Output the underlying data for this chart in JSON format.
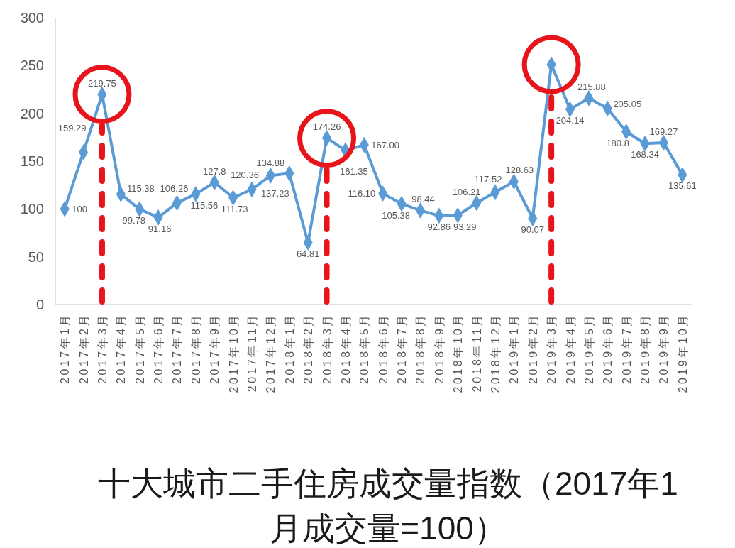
{
  "chart_data": {
    "type": "line",
    "title": "十大城市二手住房成交量指数（2017年1月成交量=100）",
    "categories": [
      "2017年1月",
      "2017年2月",
      "2017年3月",
      "2017年4月",
      "2017年5月",
      "2017年6月",
      "2017年7月",
      "2017年8月",
      "2017年9月",
      "2017年10月",
      "2017年11月",
      "2017年12月",
      "2018年1月",
      "2018年2月",
      "2018年3月",
      "2018年4月",
      "2018年5月",
      "2018年6月",
      "2018年7月",
      "2018年8月",
      "2018年9月",
      "2018年10月",
      "2018年11月",
      "2018年12月",
      "2019年1月",
      "2019年2月",
      "2019年3月",
      "2019年4月",
      "2019年5月",
      "2019年6月",
      "2019年7月",
      "2019年8月",
      "2019年9月",
      "2019年10月"
    ],
    "series": [
      {
        "color": "#5b9bd5",
        "marker": "diamond",
        "values": [
          100,
          159.29,
          219.75,
          115.38,
          99.78,
          91.16,
          106.26,
          115.56,
          127.8,
          111.73,
          120.36,
          134.88,
          137.23,
          64.81,
          174.26,
          161.35,
          167.0,
          116.1,
          105.38,
          98.44,
          92.86,
          93.29,
          106.21,
          117.52,
          128.63,
          90.07,
          251,
          204.14,
          215.88,
          205.05,
          180.8,
          168.34,
          169.27,
          135.61
        ],
        "value_labels": [
          "100",
          "159.29",
          "219.75",
          "115.38",
          "99.78",
          "91.16",
          "106.26",
          "115.56",
          "127.8",
          "111.73",
          "120.36",
          "134.88",
          "137.23",
          "64.81",
          "174.26",
          "161.35",
          "167.00",
          "116.10",
          "105.38",
          "98.44",
          "92.86",
          "93.29",
          "106.21",
          "117.52",
          "128.63",
          "90.07",
          null,
          "204.14",
          "215.88",
          "205.05",
          "180.8",
          "168.34",
          "169.27",
          "135.61"
        ]
      },
      {
        "type": "scatter",
        "color": "#e8141b",
        "marker": "circle",
        "x": [
          "2017年3月",
          "2018年3月",
          "2019年3月"
        ],
        "values": [
          220,
          174,
          251
        ]
      }
    ],
    "ylim": [
      0,
      300
    ],
    "yticks": [
      0,
      50,
      100,
      150,
      200,
      250,
      300
    ],
    "ref_lines": [
      {
        "axis": "x",
        "value": "2017年3月",
        "color": "#e8141b",
        "line_style": "dashed"
      },
      {
        "axis": "x",
        "value": "2018年3月",
        "color": "#e8141b",
        "line_style": "dashed"
      },
      {
        "axis": "x",
        "value": "2019年3月",
        "color": "#e8141b",
        "line_style": "dashed"
      }
    ]
  }
}
